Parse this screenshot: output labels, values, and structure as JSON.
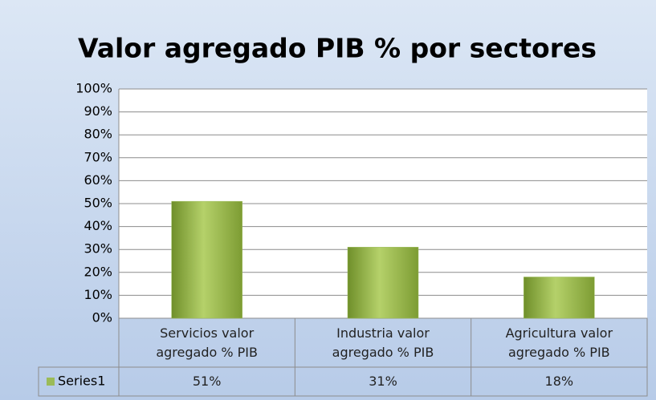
{
  "chart_data": {
    "type": "bar",
    "title": "Valor agregado PIB % por sectores",
    "categories": [
      "Servicios valor agregado % PIB",
      "Industria valor agregado % PIB",
      "Agricultura valor agregado % PIB"
    ],
    "series": [
      {
        "name": "Series1",
        "color": "#9bbb59",
        "values": [
          51,
          31,
          18
        ],
        "value_labels": [
          "51%",
          "31%",
          "18%"
        ]
      }
    ],
    "ylim": [
      0,
      100
    ],
    "yticks": [
      {
        "value": 0,
        "label": "0%"
      },
      {
        "value": 10,
        "label": "10%"
      },
      {
        "value": 20,
        "label": "20%"
      },
      {
        "value": 30,
        "label": "30%"
      },
      {
        "value": 40,
        "label": "40%"
      },
      {
        "value": 50,
        "label": "50%"
      },
      {
        "value": 60,
        "label": "60%"
      },
      {
        "value": 70,
        "label": "70%"
      },
      {
        "value": 80,
        "label": "80%"
      },
      {
        "value": 90,
        "label": "90%"
      },
      {
        "value": 100,
        "label": "100%"
      }
    ],
    "grid": true,
    "data_table": true
  }
}
